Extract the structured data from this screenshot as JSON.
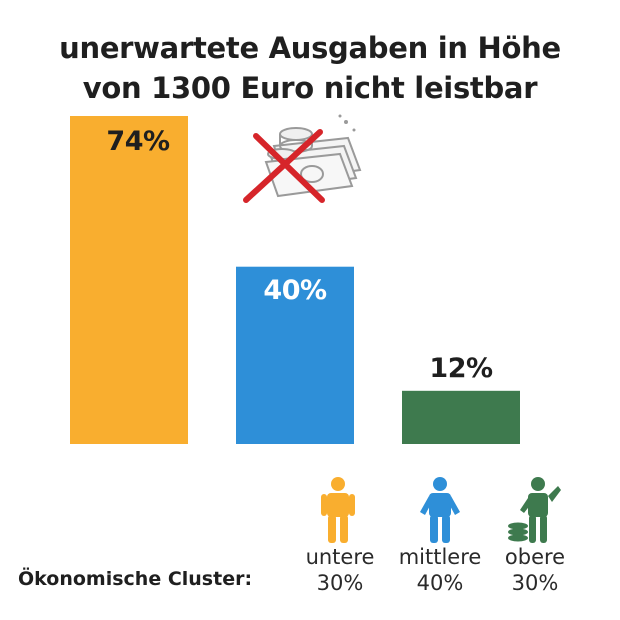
{
  "title_line1": "unerwartete Ausgaben in Höhe",
  "title_line2": "von 1300 Euro nicht leistbar",
  "axis_caption": "Ökonomische Cluster:",
  "colors": {
    "untere": "#F9AE2F",
    "mittlere": "#2E8FD8",
    "obere": "#3E7A4E",
    "label_dark": "#1f1f1f",
    "label_light": "#ffffff",
    "cross": "#d6252a"
  },
  "icons": [
    "money-crossed-out-icon",
    "person-standing-icon",
    "person-waving-icon",
    "person-with-coins-icon"
  ],
  "chart_data": {
    "type": "bar",
    "title": "unerwartete Ausgaben in Höhe von 1300 Euro nicht leistbar",
    "categories": [
      "untere",
      "mittlere",
      "obere"
    ],
    "category_shares": [
      "30%",
      "40%",
      "30%"
    ],
    "values": [
      74,
      40,
      12
    ],
    "value_labels": [
      "74%",
      "40%",
      "12%"
    ],
    "ylim": [
      0,
      74
    ],
    "grid": false,
    "legend": "none"
  }
}
